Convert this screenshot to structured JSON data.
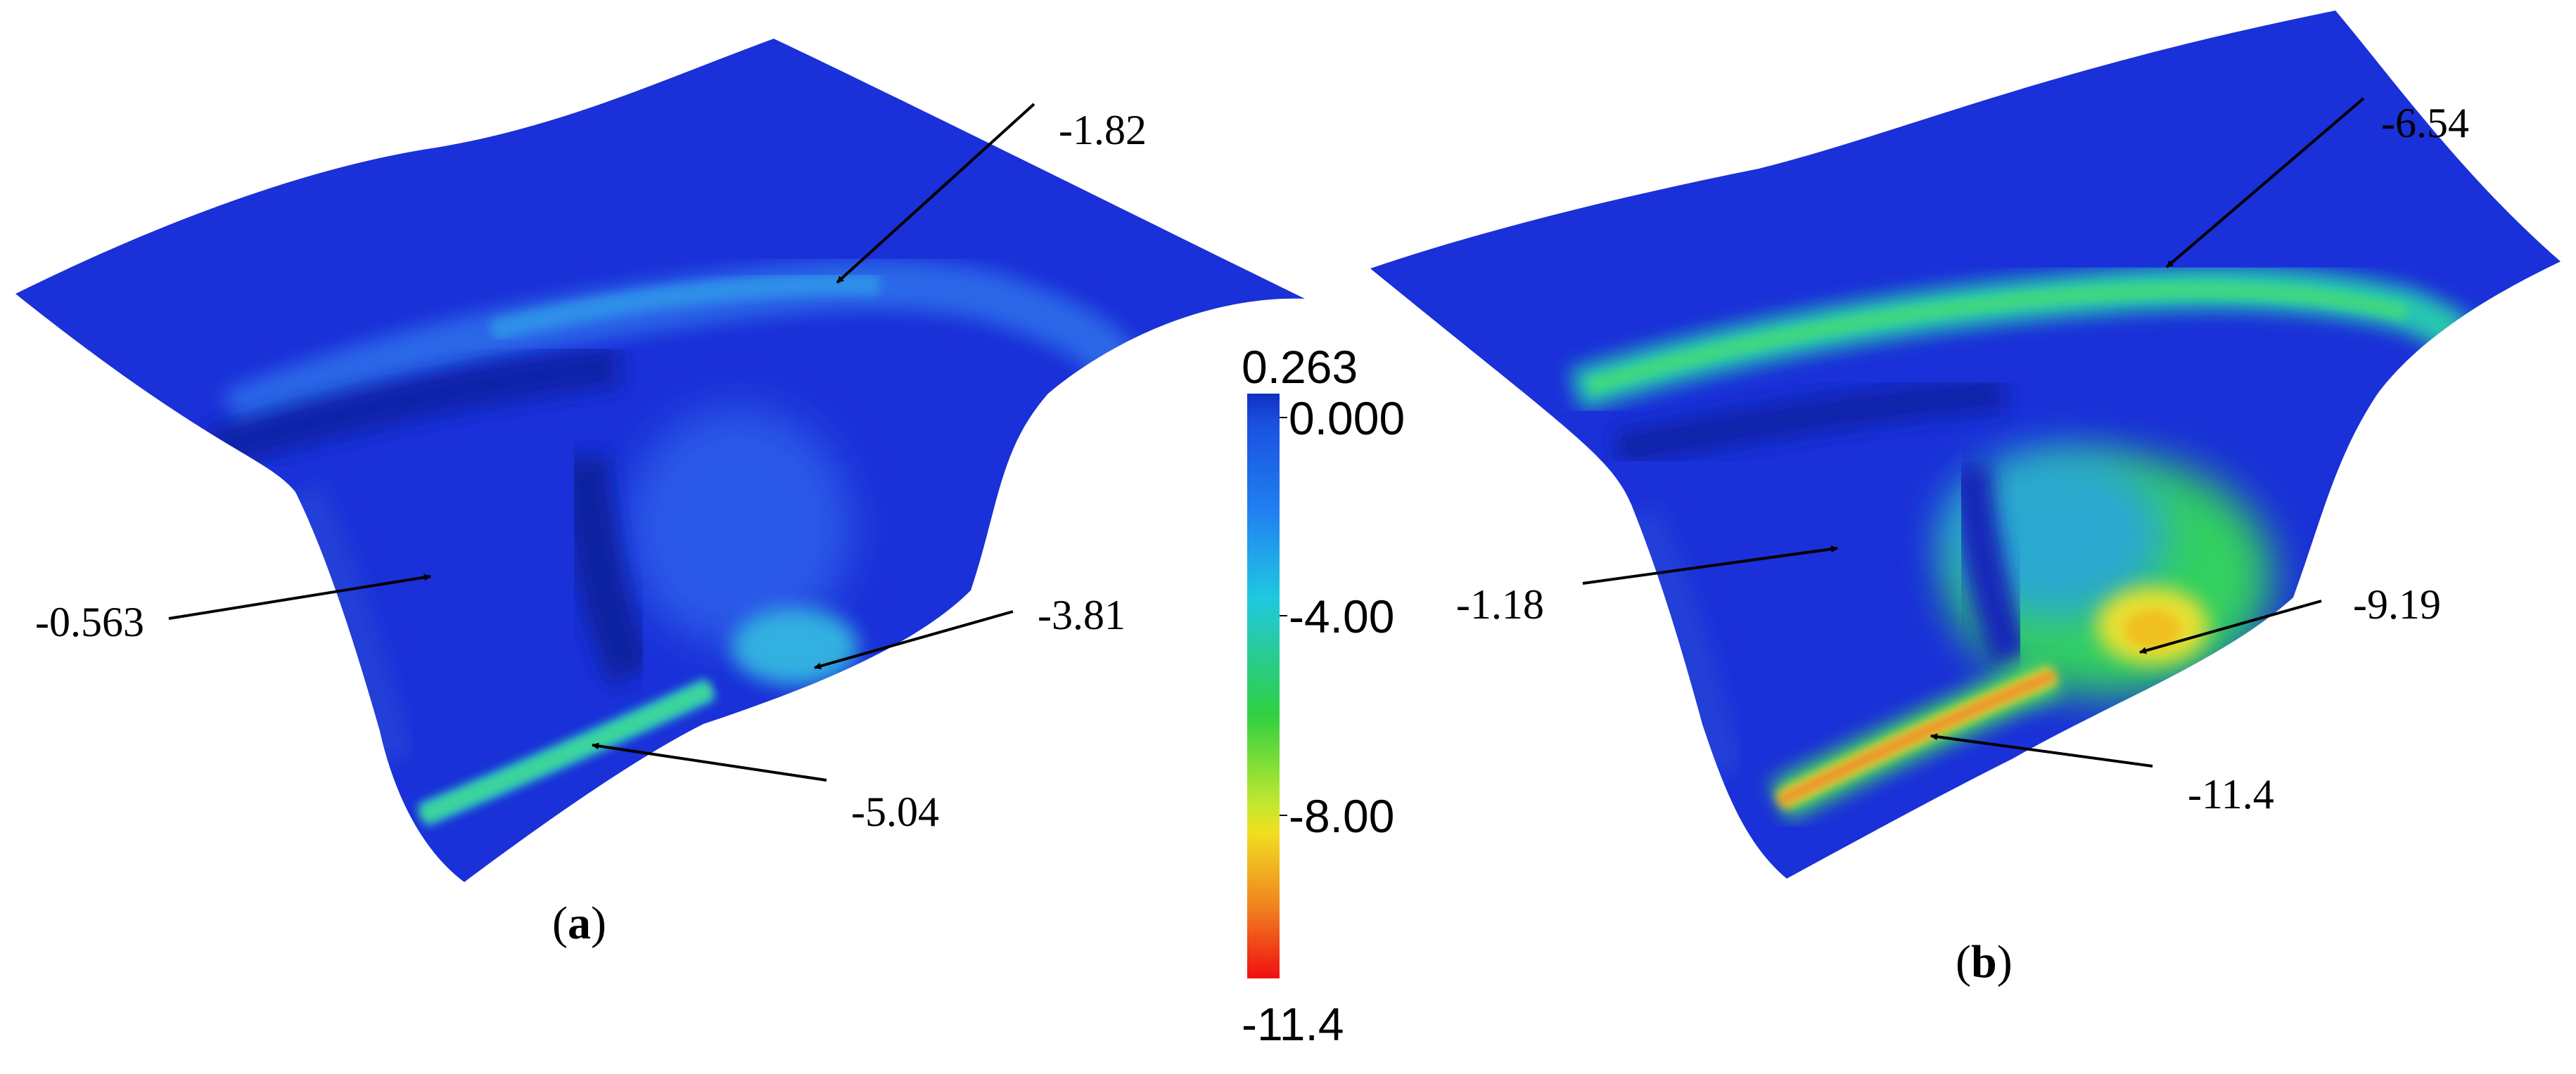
{
  "panels": [
    {
      "label_open": "(",
      "label_letter": "a",
      "label_close": ")",
      "annotations": [
        "-1.82",
        "-0.563",
        "-3.81",
        "-5.04"
      ]
    },
    {
      "label_open": "(",
      "label_letter": "b",
      "label_close": ")",
      "annotations": [
        "-6.54",
        "-1.18",
        "-9.19",
        "-11.4"
      ]
    }
  ],
  "colorbar": {
    "max_label": "0.263",
    "tick_labels": [
      "0.000",
      "-4.00",
      "-8.00"
    ],
    "min_label": "-11.4",
    "colors": {
      "top": "#1030c0",
      "upper": "#1a60e8",
      "cyan": "#20c8e0",
      "green": "#30d040",
      "yellow": "#f0e020",
      "orange": "#f08020",
      "bottom": "#f01010"
    }
  },
  "surface_colors": {
    "base": "#1830d8",
    "deep": "#1020b8",
    "light": "#2a5ae8",
    "cyan": "#28c0d8",
    "green": "#40d860",
    "yellow": "#e8e830",
    "orange": "#f07828"
  }
}
